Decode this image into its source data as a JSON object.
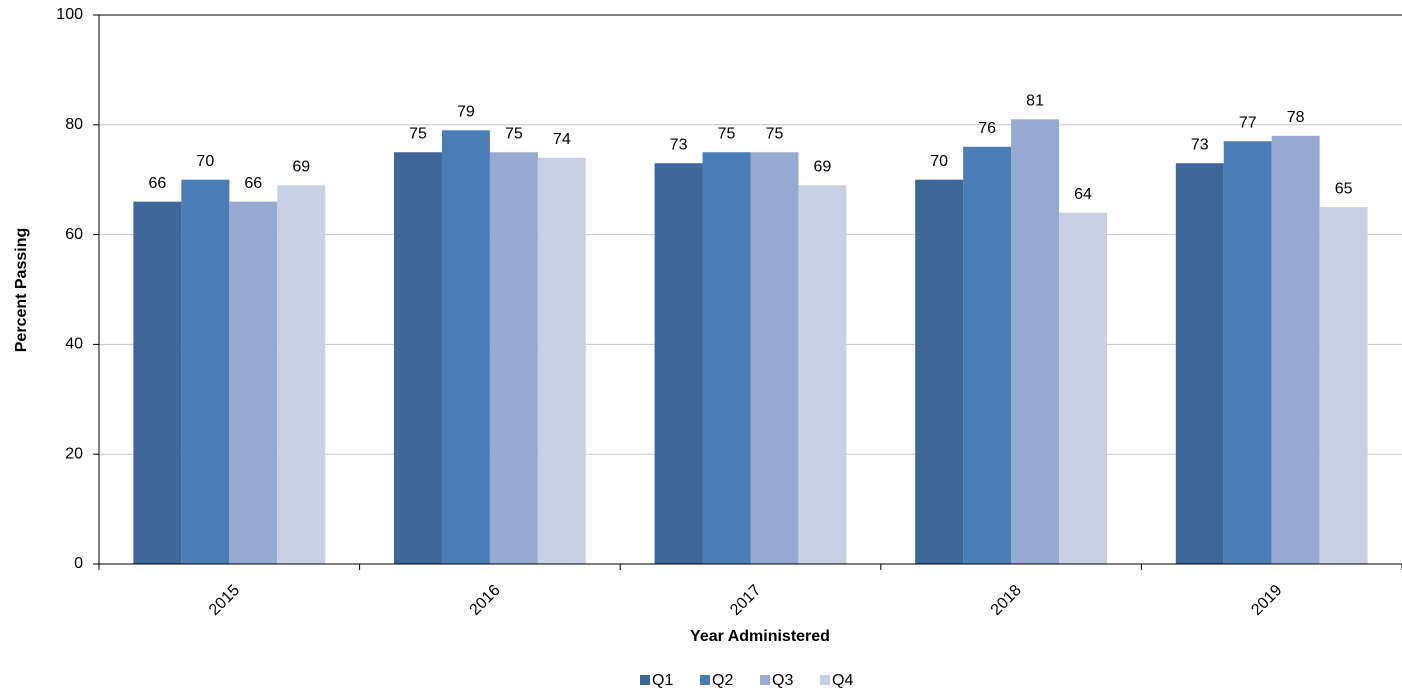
{
  "chart_data": {
    "type": "bar",
    "x_label": "Year Administered",
    "y_label": "Percent Passing",
    "categories": [
      "2015",
      "2016",
      "2017",
      "2018",
      "2019"
    ],
    "series": [
      {
        "name": "Q1",
        "color": "#3e6696",
        "values": [
          66,
          75,
          73,
          70,
          73
        ]
      },
      {
        "name": "Q2",
        "color": "#4a7cb6",
        "values": [
          70,
          79,
          75,
          76,
          77
        ]
      },
      {
        "name": "Q3",
        "color": "#95a9d1",
        "values": [
          66,
          75,
          75,
          81,
          78
        ]
      },
      {
        "name": "Q4",
        "color": "#c8d1e4",
        "values": [
          69,
          74,
          69,
          64,
          65
        ]
      }
    ],
    "ylim": [
      0,
      100
    ],
    "yticks": [
      0,
      20,
      40,
      60,
      80,
      100
    ],
    "grid": true,
    "legend": "bottom"
  }
}
